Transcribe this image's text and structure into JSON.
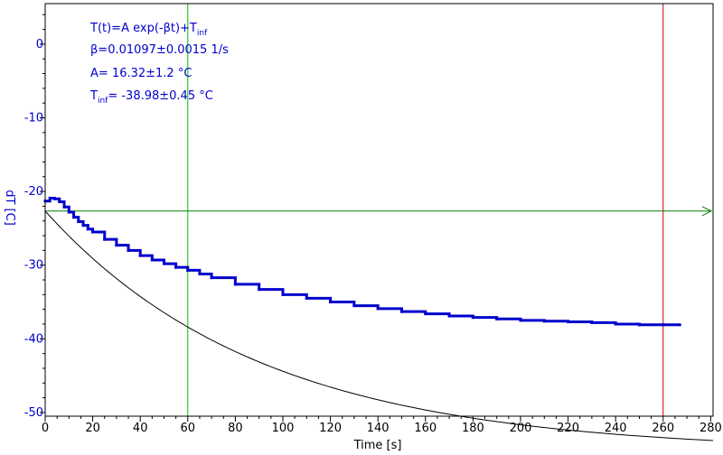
{
  "colors": {
    "data_series": "#0000cc",
    "fit_line": "#000000",
    "annotation_text": "#0000cc",
    "y_axis_text": "#0000cc",
    "x_axis_text": "#000000",
    "marker_green": "#00c000",
    "marker_red": "#cc0000",
    "arrow_line": "#008000",
    "frame": "#000000",
    "background": "#ffffff"
  },
  "annotations": {
    "model": {
      "text": "T(t)=A exp(-βt)+T",
      "sub": "inf"
    },
    "beta": {
      "text": "β=0.01097±0.0015 1/s"
    },
    "amplitude": {
      "text": "A= 16.32±1.2 °C"
    },
    "tinf": {
      "prefix": "T",
      "sub": "inf",
      "text": "= -38.98±0.45 °C"
    }
  },
  "chart_data": {
    "type": "line",
    "title": "",
    "xlabel": "Time [s]",
    "ylabel": "dT [C]",
    "xlim": [
      0,
      281
    ],
    "ylim": [
      -50.5,
      5.5
    ],
    "x_ticks": [
      0,
      20,
      40,
      60,
      80,
      100,
      120,
      140,
      160,
      180,
      200,
      220,
      240,
      260,
      280
    ],
    "y_ticks": [
      0,
      -10,
      -20,
      -30,
      -40,
      -50
    ],
    "grid": false,
    "fit": {
      "model": "T(t)=A exp(-βt)+T_inf",
      "beta": 0.01097,
      "A": 16.32,
      "T_inf": -38.98,
      "x_range": [
        0,
        281
      ]
    },
    "series": [
      {
        "type": "stepped",
        "x": [
          0,
          2,
          4,
          6,
          8,
          10,
          12,
          14,
          16,
          18,
          20,
          25,
          30,
          35,
          40,
          45,
          50,
          55,
          60,
          65,
          70,
          80,
          90,
          100,
          110,
          120,
          130,
          140,
          150,
          160,
          170,
          180,
          190,
          200,
          210,
          220,
          230,
          240,
          250,
          260,
          267
        ],
        "y": [
          -21.3,
          -20.9,
          -21.0,
          -21.4,
          -22.1,
          -22.8,
          -23.5,
          -24.1,
          -24.6,
          -25.1,
          -25.5,
          -26.5,
          -27.3,
          -28.0,
          -28.7,
          -29.3,
          -29.8,
          -30.3,
          -30.7,
          -31.2,
          -31.7,
          -32.6,
          -33.3,
          -34.0,
          -34.5,
          -35.0,
          -35.5,
          -35.9,
          -36.3,
          -36.6,
          -36.9,
          -37.1,
          -37.3,
          -37.5,
          -37.6,
          -37.7,
          -37.8,
          -38.0,
          -38.1,
          -38.1,
          -38.1
        ]
      }
    ],
    "vertical_markers": [
      {
        "x": 60,
        "color": "green"
      },
      {
        "x": 260,
        "color": "red"
      }
    ],
    "horizontal_marker": {
      "y": -22.66,
      "arrow": "right"
    }
  }
}
